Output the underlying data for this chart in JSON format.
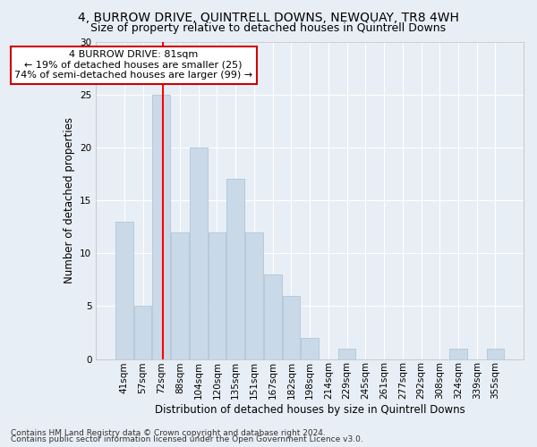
{
  "title1": "4, BURROW DRIVE, QUINTRELL DOWNS, NEWQUAY, TR8 4WH",
  "title2": "Size of property relative to detached houses in Quintrell Downs",
  "xlabel": "Distribution of detached houses by size in Quintrell Downs",
  "ylabel": "Number of detached properties",
  "bar_labels": [
    "41sqm",
    "57sqm",
    "72sqm",
    "88sqm",
    "104sqm",
    "120sqm",
    "135sqm",
    "151sqm",
    "167sqm",
    "182sqm",
    "198sqm",
    "214sqm",
    "229sqm",
    "245sqm",
    "261sqm",
    "277sqm",
    "292sqm",
    "308sqm",
    "324sqm",
    "339sqm",
    "355sqm"
  ],
  "bar_heights": [
    13,
    5,
    25,
    12,
    20,
    12,
    17,
    12,
    8,
    6,
    2,
    0,
    1,
    0,
    0,
    0,
    0,
    0,
    1,
    0,
    1
  ],
  "bar_color": "#c9d9e8",
  "bar_edge_color": "#a8c0d4",
  "ylim": [
    0,
    30
  ],
  "yticks": [
    0,
    5,
    10,
    15,
    20,
    25,
    30
  ],
  "red_line_index": 2,
  "annotation_line1": "4 BURROW DRIVE: 81sqm",
  "annotation_line2": "← 19% of detached houses are smaller (25)",
  "annotation_line3": "74% of semi-detached houses are larger (99) →",
  "annotation_box_color": "#ffffff",
  "annotation_box_edge": "#cc0000",
  "footer1": "Contains HM Land Registry data © Crown copyright and database right 2024.",
  "footer2": "Contains public sector information licensed under the Open Government Licence v3.0.",
  "background_color": "#e8eef5",
  "grid_color": "#ffffff",
  "title1_fontsize": 10,
  "title2_fontsize": 9,
  "xlabel_fontsize": 8.5,
  "ylabel_fontsize": 8.5,
  "tick_fontsize": 7.5,
  "annotation_fontsize": 8,
  "footer_fontsize": 6.5
}
